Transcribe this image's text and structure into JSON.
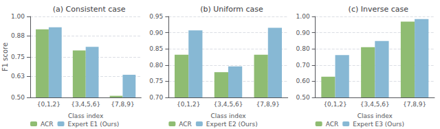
{
  "chart_data": [
    {
      "type": "bar",
      "title": "(a) Consistent case",
      "xlabel": "Class index",
      "ylabel": "F1 score",
      "categories": [
        "{0,1,2}",
        "{3,4,5,6}",
        "{7,8,9}"
      ],
      "series": [
        {
          "name": "ACR",
          "color": "#8fbc72",
          "values": [
            0.921,
            0.79,
            0.51
          ]
        },
        {
          "name": "Expert E1 (Ours)",
          "color": "#87b8d4",
          "values": [
            0.933,
            0.812,
            0.64
          ]
        }
      ],
      "ylim": [
        0.5,
        1.0
      ],
      "yticks": [
        {
          "value": 0.5,
          "label": "0.50"
        },
        0.63,
        0.75,
        0.88,
        {
          "value": 1.0,
          "label": "1.00"
        }
      ],
      "grid": true,
      "legend": "lower left"
    },
    {
      "type": "bar",
      "title": "(b) Uniform case",
      "xlabel": "Class index",
      "categories": [
        "{0,1,2}",
        "{3,4,5,6}",
        "{7,8,9}"
      ],
      "series": [
        {
          "name": "ACR",
          "color": "#8fbc72",
          "values": [
            0.832,
            0.778,
            0.832
          ]
        },
        {
          "name": "Expert E2 (Ours)",
          "color": "#87b8d4",
          "values": [
            0.907,
            0.796,
            0.915
          ]
        }
      ],
      "ylim": [
        0.7,
        0.95
      ],
      "yticks": [
        {
          "value": 0.7,
          "label": "0.70"
        },
        0.75,
        {
          "value": 0.8,
          "label": "0.80"
        },
        0.85,
        {
          "value": 0.9,
          "label": "0.90"
        },
        0.95
      ],
      "grid": true,
      "legend": "lower left"
    },
    {
      "type": "bar",
      "title": "(c) Inverse case",
      "xlabel": "Class index",
      "categories": [
        "{0,1,2}",
        "{3,4,5,6}",
        "{7,8,9}"
      ],
      "series": [
        {
          "name": "ACR",
          "color": "#8fbc72",
          "values": [
            0.628,
            0.81,
            0.968
          ]
        },
        {
          "name": "Expert E3 (Ours)",
          "color": "#87b8d4",
          "values": [
            0.762,
            0.848,
            0.984
          ]
        }
      ],
      "ylim": [
        0.5,
        1.0
      ],
      "yticks": [
        {
          "value": 0.5,
          "label": "0.50"
        },
        {
          "value": 0.6,
          "label": "0.60"
        },
        {
          "value": 0.7,
          "label": "0.70"
        },
        {
          "value": 0.8,
          "label": "0.80"
        },
        {
          "value": 0.9,
          "label": "0.90"
        },
        {
          "value": 1.0,
          "label": "1.00"
        }
      ],
      "grid": true,
      "legend": "lower left"
    }
  ]
}
